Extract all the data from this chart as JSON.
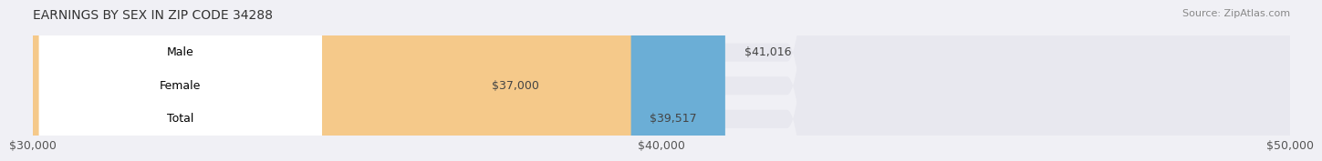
{
  "title": "EARNINGS BY SEX IN ZIP CODE 34288",
  "source": "Source: ZipAtlas.com",
  "categories": [
    "Male",
    "Female",
    "Total"
  ],
  "values": [
    41016,
    37000,
    39517
  ],
  "bar_colors": [
    "#6baed6",
    "#f4a0b5",
    "#f5c98a"
  ],
  "label_colors": [
    "#6baed6",
    "#f4a0b5",
    "#f5c98a"
  ],
  "bar_labels": [
    "$41,016",
    "$37,000",
    "$39,517"
  ],
  "xlim": [
    30000,
    50000
  ],
  "xticks": [
    30000,
    40000,
    50000
  ],
  "xtick_labels": [
    "$30,000",
    "$40,000",
    "$50,000"
  ],
  "background_color": "#f0f0f5",
  "bar_background_color": "#e8e8ef",
  "title_fontsize": 10,
  "tick_fontsize": 9,
  "label_fontsize": 9,
  "value_fontsize": 9
}
